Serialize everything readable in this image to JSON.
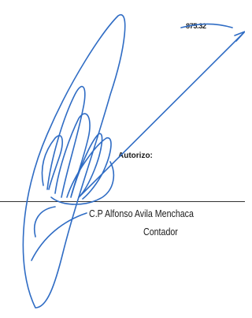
{
  "amount": "875.32",
  "authorization_label": "Autorizo:",
  "signer": {
    "name": "C.P Alfonso Avila Menchaca",
    "role": "Contador"
  }
}
